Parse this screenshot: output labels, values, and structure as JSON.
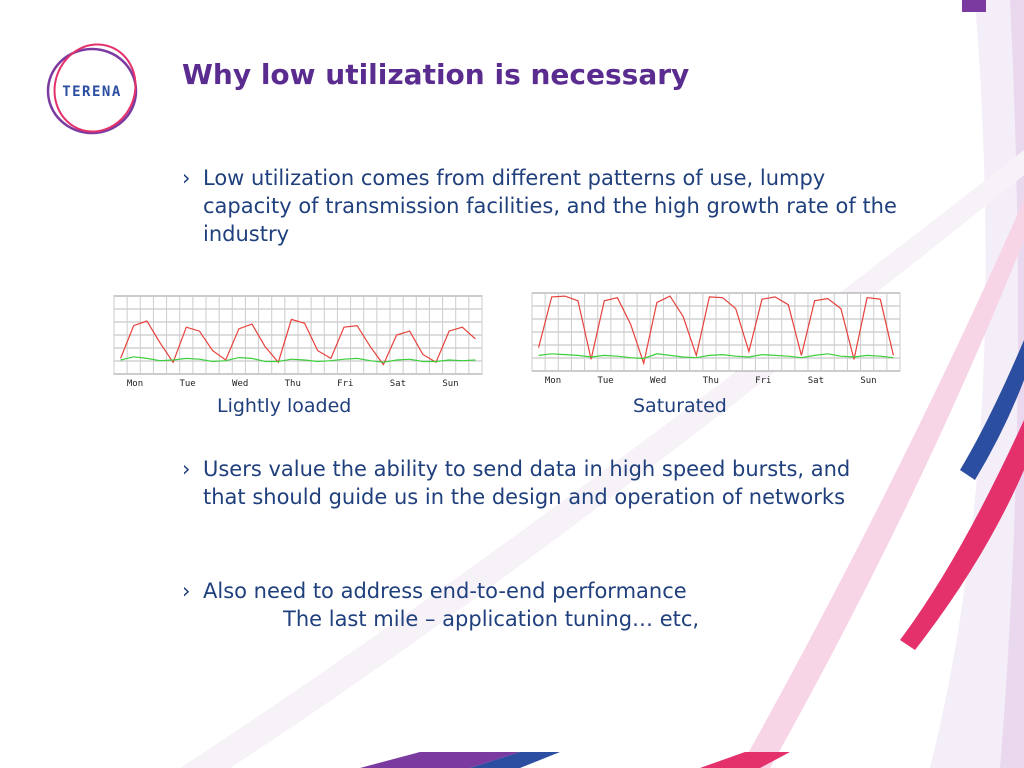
{
  "header": {
    "logo": "TERENA",
    "title": "Why low utilization is necessary"
  },
  "bullet_marker": "›",
  "bullets": [
    {
      "lines": [
        "Low utilization comes from different patterns of use, lumpy capacity of transmission facilities, and the high growth rate of the industry"
      ]
    },
    {
      "lines": [
        "Users value the ability to send data in high speed bursts, and that should guide us in the design and operation of networks"
      ]
    },
    {
      "lines": [
        "Also need to address end-to-end performance",
        "The last mile – application tuning… etc,"
      ]
    }
  ],
  "charts": [
    {
      "type": "line",
      "caption": "Lightly loaded",
      "categories": [
        "Mon",
        "Tue",
        "Wed",
        "Thu",
        "Fri",
        "Sat",
        "Sun"
      ],
      "ylim": [
        0,
        100
      ],
      "series": [
        {
          "color": "#e8413c",
          "values": [
            [
              20,
              62,
              68,
              40
            ],
            [
              15,
              60,
              55,
              30
            ],
            [
              18,
              58,
              64,
              35
            ],
            [
              15,
              70,
              65,
              30
            ],
            [
              20,
              60,
              62,
              35
            ],
            [
              12,
              50,
              55,
              25
            ],
            [
              15,
              55,
              60,
              45
            ]
          ]
        },
        {
          "color": "#3ccf3c",
          "values": [
            [
              18,
              22,
              20,
              17
            ],
            [
              18,
              20,
              19,
              16
            ],
            [
              17,
              21,
              20,
              16
            ],
            [
              16,
              19,
              18,
              16
            ],
            [
              17,
              19,
              20,
              17
            ],
            [
              15,
              18,
              19,
              16
            ],
            [
              16,
              18,
              17,
              18
            ]
          ]
        }
      ]
    },
    {
      "type": "line",
      "caption": "Saturated",
      "categories": [
        "Mon",
        "Tue",
        "Wed",
        "Thu",
        "Fri",
        "Sat",
        "Sun"
      ],
      "ylim": [
        0,
        100
      ],
      "series": [
        {
          "color": "#e8413c",
          "values": [
            [
              30,
              95,
              96,
              90
            ],
            [
              15,
              90,
              94,
              60
            ],
            [
              10,
              88,
              96,
              70
            ],
            [
              20,
              95,
              94,
              80
            ],
            [
              25,
              92,
              95,
              85
            ],
            [
              20,
              90,
              93,
              80
            ],
            [
              15,
              94,
              92,
              20
            ]
          ]
        },
        {
          "color": "#3ccf3c",
          "values": [
            [
              20,
              22,
              21,
              20
            ],
            [
              18,
              20,
              19,
              17
            ],
            [
              16,
              22,
              20,
              18
            ],
            [
              17,
              20,
              21,
              19
            ],
            [
              18,
              21,
              20,
              19
            ],
            [
              17,
              20,
              22,
              19
            ],
            [
              18,
              20,
              19,
              17
            ]
          ]
        }
      ]
    }
  ]
}
